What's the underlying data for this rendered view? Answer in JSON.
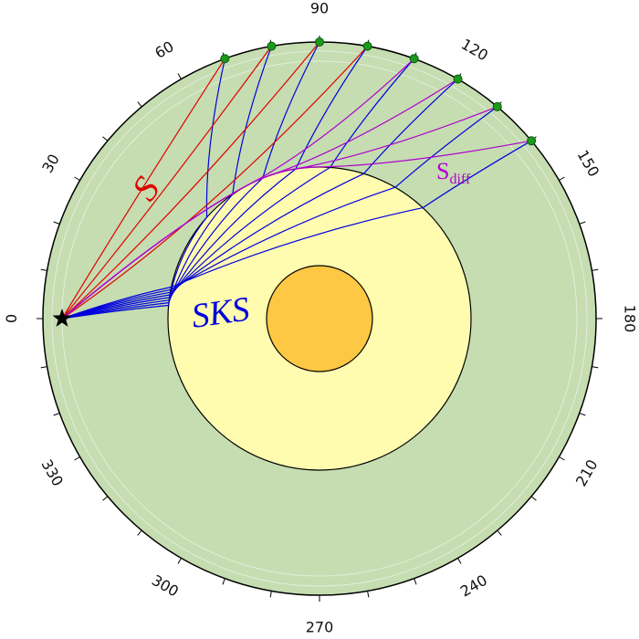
{
  "angle_labels": [
    0,
    30,
    60,
    90,
    120,
    150,
    180,
    210,
    240,
    270,
    300,
    330
  ],
  "phases": {
    "s": "S",
    "sks": "SKS",
    "sdiff": {
      "main": "S",
      "sub": "diff"
    }
  }
}
